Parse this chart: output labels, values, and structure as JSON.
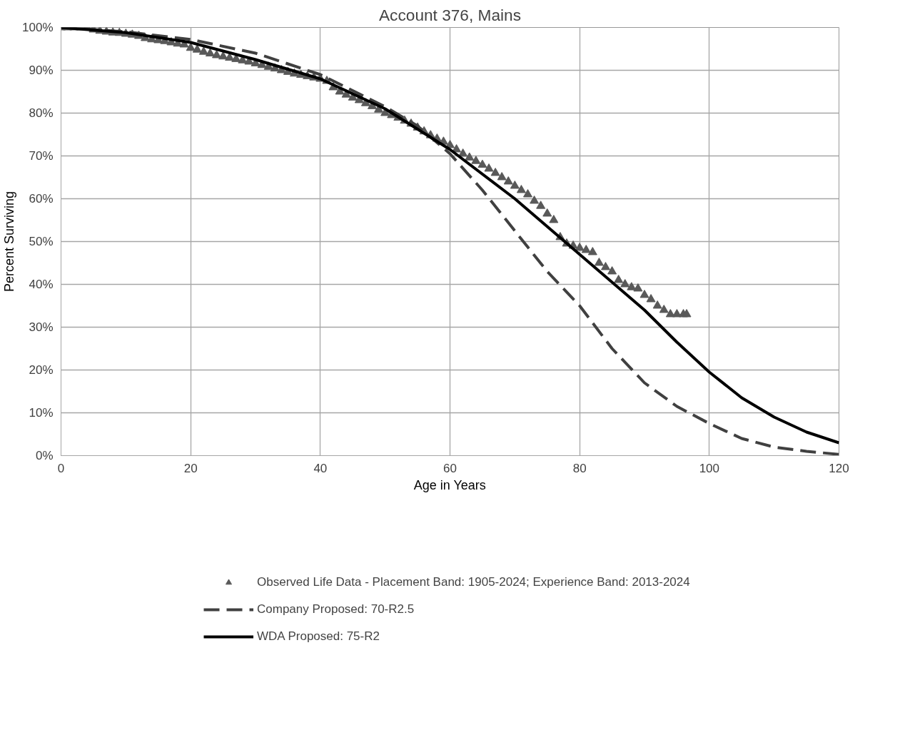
{
  "chart_data": {
    "type": "line",
    "title": "Account 376, Mains",
    "xlabel": "Age in Years",
    "ylabel": "Percent Surviving",
    "xlim": [
      0,
      120
    ],
    "xticks": [
      0,
      20,
      40,
      60,
      80,
      100,
      120
    ],
    "ylim": [
      0,
      100
    ],
    "yticks": [
      {
        "value": 0,
        "label": "0%"
      },
      {
        "value": 10,
        "label": "10%"
      },
      {
        "value": 20,
        "label": "20%"
      },
      {
        "value": 30,
        "label": "30%"
      },
      {
        "value": 40,
        "label": "40%"
      },
      {
        "value": 50,
        "label": "50%"
      },
      {
        "value": 60,
        "label": "60%"
      },
      {
        "value": 70,
        "label": "70%"
      },
      {
        "value": 80,
        "label": "80%"
      },
      {
        "value": 90,
        "label": "90%"
      },
      {
        "value": 100,
        "label": "100%"
      }
    ],
    "grid": true,
    "legend": "bottom",
    "series": [
      {
        "name": "Observed Life Data - Placement Band: 1905-2024; Experience Band: 2013-2024",
        "type": "scatter",
        "marker": "triangle",
        "color": "#595959",
        "x": [
          0,
          1,
          2,
          3,
          4,
          5,
          6,
          7,
          8,
          9,
          10,
          11,
          12,
          13,
          14,
          15,
          16,
          17,
          18,
          19,
          20,
          21,
          22,
          23,
          24,
          25,
          26,
          27,
          28,
          29,
          30,
          31,
          32,
          33,
          34,
          35,
          36,
          37,
          38,
          39,
          40,
          41,
          42,
          43,
          44,
          45,
          46,
          47,
          48,
          49,
          50,
          51,
          52,
          53,
          54,
          55,
          56,
          57,
          58,
          59,
          60,
          61,
          62,
          63,
          64,
          65,
          66,
          67,
          68,
          69,
          70,
          71,
          72,
          73,
          74,
          75,
          76,
          77,
          78,
          79,
          80,
          81,
          82,
          83,
          84,
          85,
          86,
          87,
          88,
          89,
          90,
          91,
          92,
          93,
          94,
          95,
          96,
          96.5
        ],
        "values": [
          100,
          100,
          100,
          100,
          100,
          99.5,
          99.2,
          99,
          98.8,
          98.7,
          98.5,
          98.3,
          98,
          97.5,
          97.2,
          97,
          96.8,
          96.5,
          96.2,
          96,
          95.2,
          94.8,
          94.3,
          93.9,
          93.5,
          93.2,
          92.9,
          92.6,
          92.3,
          92,
          91.6,
          91.2,
          90.8,
          90.4,
          90,
          89.6,
          89.2,
          88.9,
          88.6,
          88.3,
          88,
          87.5,
          86,
          85,
          84.3,
          83.6,
          83,
          82.3,
          81.6,
          80.8,
          80,
          79.5,
          78.9,
          78.2,
          77.5,
          76.6,
          75.7,
          74.8,
          74,
          73.3,
          72.5,
          71.5,
          70.5,
          69.6,
          68.8,
          67.9,
          67,
          66,
          65,
          64,
          63,
          62,
          61,
          59.5,
          58.3,
          56.5,
          55,
          51,
          49.5,
          49,
          48.5,
          48,
          47.5,
          45,
          44,
          43,
          41,
          40,
          39.3,
          39,
          37.5,
          36.5,
          35,
          34,
          33,
          33,
          33,
          33
        ]
      },
      {
        "name": "Company Proposed: 70-R2.5",
        "type": "line",
        "line_style": "dashed",
        "color": "#404040",
        "x": [
          0,
          10,
          20,
          30,
          40,
          50,
          55,
          60,
          65,
          70,
          75,
          80,
          85,
          90,
          95,
          100,
          105,
          110,
          115,
          120
        ],
        "values": [
          100,
          99,
          97.2,
          94,
          89,
          81.5,
          77,
          70.5,
          62,
          52.5,
          43,
          35,
          25,
          17,
          11.5,
          7.5,
          4,
          2,
          1,
          0.3
        ]
      },
      {
        "name": "WDA Proposed: 75-R2",
        "type": "line",
        "line_style": "solid",
        "color": "#000000",
        "x": [
          0,
          10,
          20,
          30,
          40,
          50,
          60,
          70,
          75,
          80,
          85,
          90,
          95,
          100,
          105,
          110,
          115,
          120
        ],
        "values": [
          100,
          98.8,
          96.5,
          92.5,
          88,
          81,
          71.5,
          60,
          53.5,
          47,
          40.5,
          34,
          26.5,
          19.5,
          13.5,
          9,
          5.5,
          3
        ]
      }
    ]
  }
}
